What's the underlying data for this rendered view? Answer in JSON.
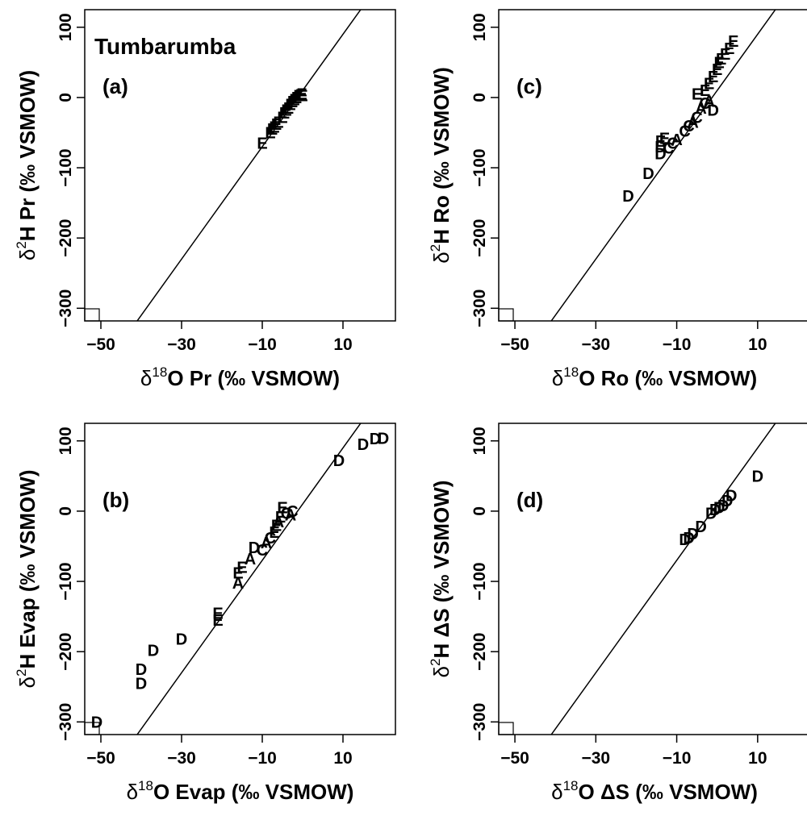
{
  "chart_data": [
    {
      "type": "scatter",
      "panel_label": "(a)",
      "title": "Tumbarumba",
      "xlabel_parts": [
        "δ",
        "18",
        "O Pr (‰ VSMOW)"
      ],
      "ylabel_parts": [
        "δ",
        "2",
        "H Pr (‰ VSMOW)"
      ],
      "xlim": [
        -54,
        23
      ],
      "ylim": [
        -318,
        125
      ],
      "xticks": [
        -50,
        -30,
        -10,
        10
      ],
      "yticks": [
        -300,
        -200,
        -100,
        0,
        100
      ],
      "line": {
        "slope": 8,
        "intercept": 10
      },
      "points": [
        {
          "label": "E",
          "x": -10,
          "y": -65
        },
        {
          "label": "E",
          "x": -8,
          "y": -50
        },
        {
          "label": "E",
          "x": -7.5,
          "y": -45
        },
        {
          "label": "E",
          "x": -7,
          "y": -42
        },
        {
          "label": "E",
          "x": -6.5,
          "y": -38
        },
        {
          "label": "E",
          "x": -6,
          "y": -35
        },
        {
          "label": "E",
          "x": -5,
          "y": -28
        },
        {
          "label": "E",
          "x": -4.5,
          "y": -22
        },
        {
          "label": "E",
          "x": -4,
          "y": -18
        },
        {
          "label": "E",
          "x": -3.5,
          "y": -15
        },
        {
          "label": "E",
          "x": -3,
          "y": -10
        },
        {
          "label": "E",
          "x": -2.5,
          "y": -6
        },
        {
          "label": "E",
          "x": -2,
          "y": -3
        },
        {
          "label": "E",
          "x": -1.5,
          "y": 0
        },
        {
          "label": "E",
          "x": -1,
          "y": 3
        },
        {
          "label": "E",
          "x": -0.5,
          "y": 4
        },
        {
          "label": "E",
          "x": -0.2,
          "y": 5
        },
        {
          "label": "E",
          "x": 0,
          "y": 3
        }
      ]
    },
    {
      "type": "scatter",
      "panel_label": "(c)",
      "title": "",
      "xlabel_parts": [
        "δ",
        "18",
        "O Ro (‰ VSMOW)"
      ],
      "ylabel_parts": [
        "δ",
        "2",
        "H Ro (‰ VSMOW)"
      ],
      "xlim": [
        -54,
        23
      ],
      "ylim": [
        -318,
        125
      ],
      "xticks": [
        -50,
        -30,
        -10,
        10
      ],
      "yticks": [
        -300,
        -200,
        -100,
        0,
        100
      ],
      "line": {
        "slope": 8,
        "intercept": 10
      },
      "points": [
        {
          "label": "D",
          "x": -22,
          "y": -140
        },
        {
          "label": "D",
          "x": -17,
          "y": -108
        },
        {
          "label": "D",
          "x": -14,
          "y": -80
        },
        {
          "label": "D",
          "x": -14,
          "y": -70
        },
        {
          "label": "E",
          "x": -14,
          "y": -62
        },
        {
          "label": "E",
          "x": -13,
          "y": -58
        },
        {
          "label": "C",
          "x": -12,
          "y": -72
        },
        {
          "label": "C",
          "x": -11,
          "y": -65
        },
        {
          "label": "A",
          "x": -10,
          "y": -60
        },
        {
          "label": "C",
          "x": -8,
          "y": -48
        },
        {
          "label": "C",
          "x": -7,
          "y": -40
        },
        {
          "label": "A",
          "x": -6,
          "y": -35
        },
        {
          "label": "C",
          "x": -5,
          "y": -28
        },
        {
          "label": "A",
          "x": -4,
          "y": -15
        },
        {
          "label": "C",
          "x": -3,
          "y": -8
        },
        {
          "label": "D",
          "x": -1,
          "y": -18
        },
        {
          "label": "A",
          "x": -2,
          "y": -5
        },
        {
          "label": "E",
          "x": -5,
          "y": 5
        },
        {
          "label": "E",
          "x": -3,
          "y": 10
        },
        {
          "label": "E",
          "x": -2,
          "y": 20
        },
        {
          "label": "E",
          "x": -1,
          "y": 30
        },
        {
          "label": "E",
          "x": 0,
          "y": 40
        },
        {
          "label": "E",
          "x": 0.5,
          "y": 50
        },
        {
          "label": "E",
          "x": 1,
          "y": 55
        },
        {
          "label": "E",
          "x": 2,
          "y": 62
        },
        {
          "label": "E",
          "x": 3,
          "y": 70
        },
        {
          "label": "E",
          "x": 4,
          "y": 80
        }
      ]
    },
    {
      "type": "scatter",
      "panel_label": "(b)",
      "title": "",
      "xlabel_parts": [
        "δ",
        "18",
        "O Evap (‰ VSMOW)"
      ],
      "ylabel_parts": [
        "δ",
        "2",
        "H Evap (‰ VSMOW)"
      ],
      "xlim": [
        -54,
        23
      ],
      "ylim": [
        -318,
        125
      ],
      "xticks": [
        -50,
        -30,
        -10,
        10
      ],
      "yticks": [
        -300,
        -200,
        -100,
        0,
        100
      ],
      "line": {
        "slope": 8,
        "intercept": 10
      },
      "points": [
        {
          "label": "D",
          "x": -51,
          "y": -300
        },
        {
          "label": "D",
          "x": -40,
          "y": -245
        },
        {
          "label": "D",
          "x": -40,
          "y": -225
        },
        {
          "label": "D",
          "x": -37,
          "y": -198
        },
        {
          "label": "D",
          "x": -30,
          "y": -182
        },
        {
          "label": "E",
          "x": -21,
          "y": -155
        },
        {
          "label": "E",
          "x": -21,
          "y": -145
        },
        {
          "label": "A",
          "x": -16,
          "y": -102
        },
        {
          "label": "E",
          "x": -16,
          "y": -88
        },
        {
          "label": "E",
          "x": -15,
          "y": -80
        },
        {
          "label": "A",
          "x": -13,
          "y": -68
        },
        {
          "label": "D",
          "x": -12,
          "y": -52
        },
        {
          "label": "C",
          "x": -10,
          "y": -55
        },
        {
          "label": "A",
          "x": -9,
          "y": -45
        },
        {
          "label": "C",
          "x": -8,
          "y": -38
        },
        {
          "label": "E",
          "x": -7,
          "y": -30
        },
        {
          "label": "E",
          "x": -6.5,
          "y": -20
        },
        {
          "label": "A",
          "x": -6,
          "y": -15
        },
        {
          "label": "E",
          "x": -5.5,
          "y": -8
        },
        {
          "label": "C",
          "x": -4,
          "y": -3
        },
        {
          "label": "E",
          "x": -5,
          "y": 5
        },
        {
          "label": "A",
          "x": -3,
          "y": -5
        },
        {
          "label": "C",
          "x": -2.5,
          "y": 0
        },
        {
          "label": "D",
          "x": 9,
          "y": 72
        },
        {
          "label": "D",
          "x": 15,
          "y": 95
        },
        {
          "label": "D",
          "x": 18,
          "y": 103
        },
        {
          "label": "D",
          "x": 20,
          "y": 104
        }
      ]
    },
    {
      "type": "scatter",
      "panel_label": "(d)",
      "title": "",
      "xlabel_parts": [
        "δ",
        "18",
        "O ΔS (‰ VSMOW)"
      ],
      "ylabel_parts": [
        "δ",
        "2",
        "H ΔS (‰ VSMOW)"
      ],
      "xlim": [
        -54,
        23
      ],
      "ylim": [
        -318,
        125
      ],
      "xticks": [
        -50,
        -30,
        -10,
        10
      ],
      "yticks": [
        -300,
        -200,
        -100,
        0,
        100
      ],
      "line": {
        "slope": 8,
        "intercept": 10
      },
      "points": [
        {
          "label": "D",
          "x": -8,
          "y": -40
        },
        {
          "label": "D",
          "x": -7,
          "y": -38
        },
        {
          "label": "D",
          "x": -6,
          "y": -32
        },
        {
          "label": "D",
          "x": -4,
          "y": -22
        },
        {
          "label": "D",
          "x": -1.5,
          "y": -3
        },
        {
          "label": "D",
          "x": -0.5,
          "y": 2
        },
        {
          "label": "D",
          "x": 0.5,
          "y": 5
        },
        {
          "label": "D",
          "x": 1.5,
          "y": 8
        },
        {
          "label": "D",
          "x": 2.5,
          "y": 15
        },
        {
          "label": "D",
          "x": 3.5,
          "y": 22
        },
        {
          "label": "D",
          "x": 10,
          "y": 50
        }
      ]
    }
  ]
}
